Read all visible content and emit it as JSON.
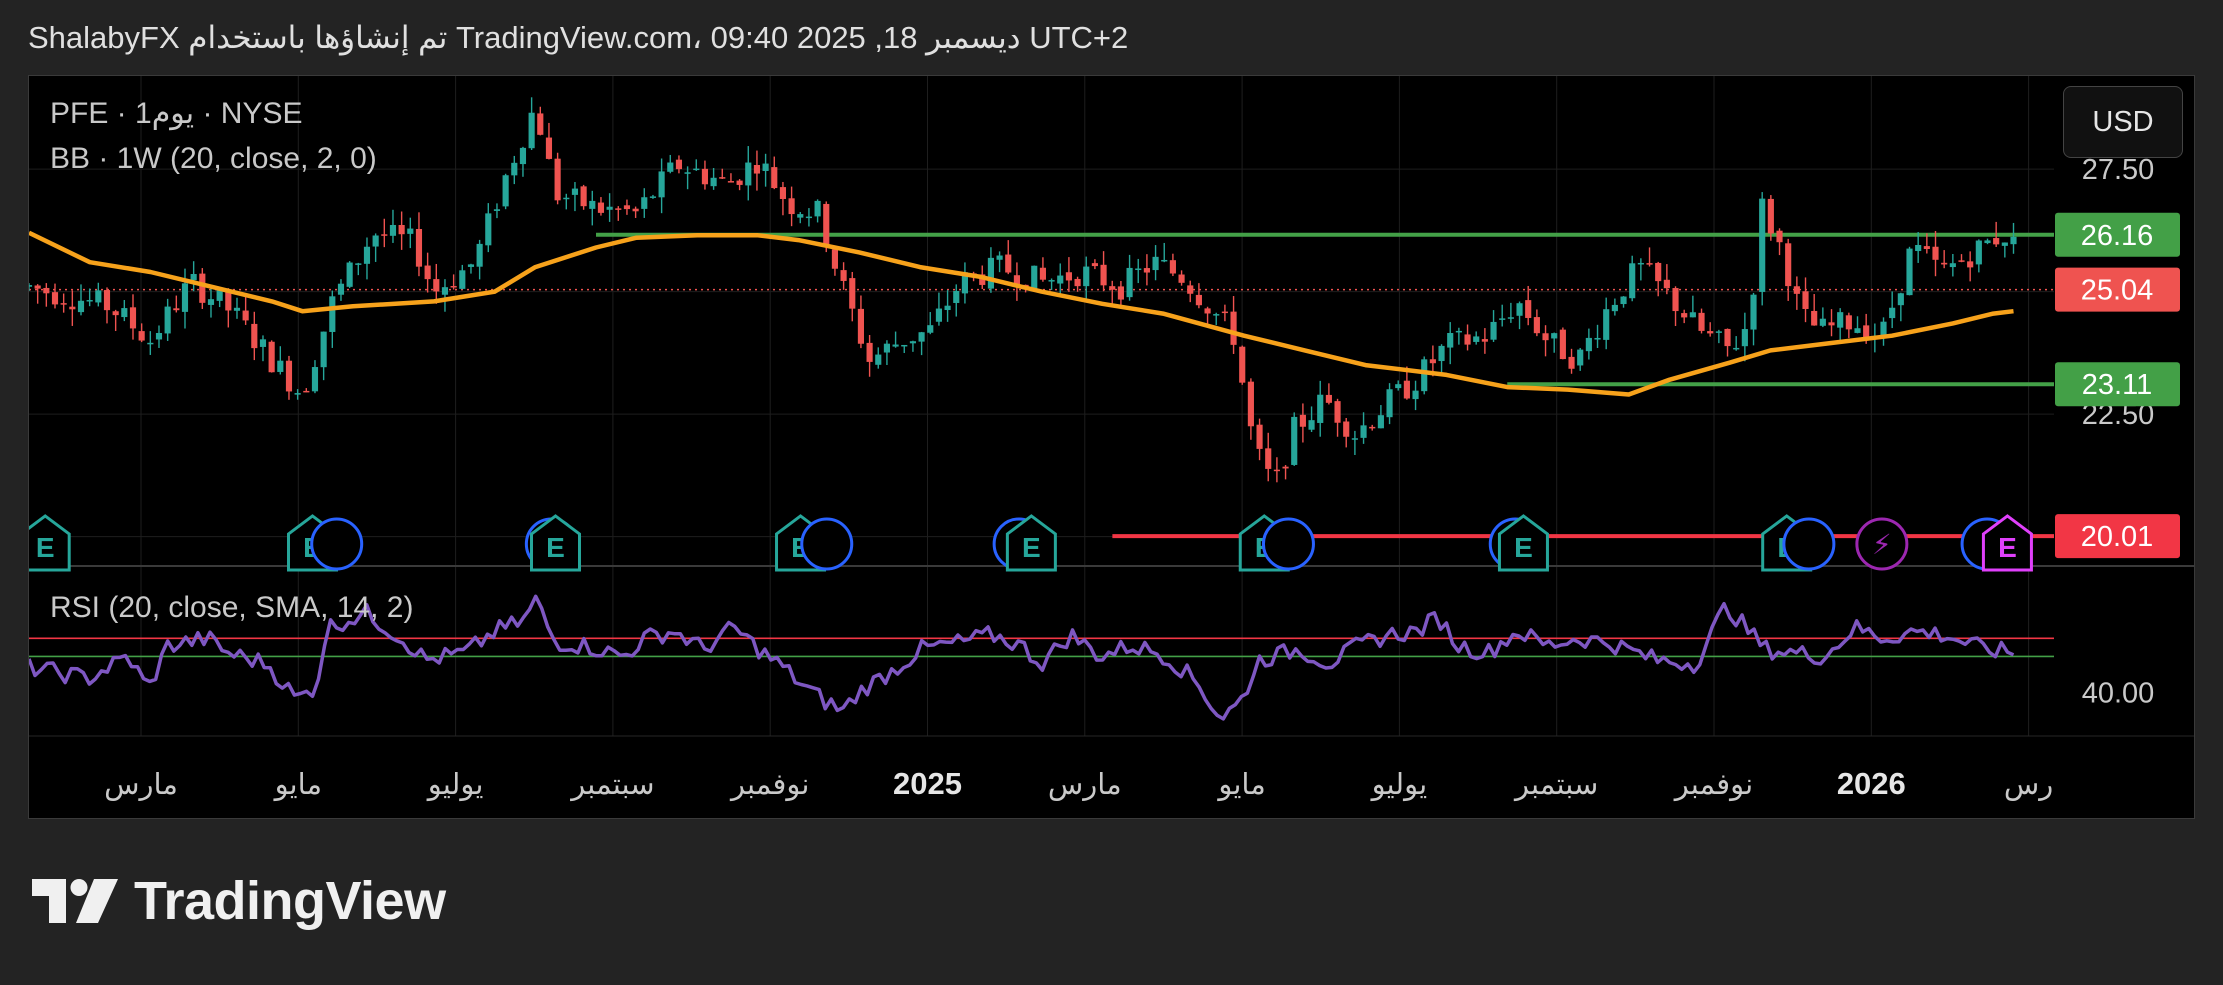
{
  "header": {
    "attribution": "ShalabyFX تم إنشاؤها باستخدام TradingView.com، 09:40 2025 ,18 ديسمبر UTC+2"
  },
  "legend": {
    "symbol_line": "PFE · 1يوم · NYSE",
    "indicator_line": "BB · 1W (20, close, 2, 0)"
  },
  "currency": "USD",
  "rsi_panel": {
    "label": "RSI (20, close, SMA, 14, 2)"
  },
  "footer": {
    "brand": "TradingView"
  },
  "colors": {
    "up": "#26a69a",
    "down": "#ef5350",
    "basis": "#f7a21b",
    "resistance": "#43a047",
    "support": "#f23645",
    "rsi": "#7e57c2",
    "earnings": "#26a69a",
    "dividend": "#2962ff",
    "split": "#9c27b0"
  },
  "chart_data": [
    {
      "type": "candlestick",
      "symbol": "PFE",
      "timeframe": "1D",
      "exchange": "NYSE",
      "currency": "USD",
      "x_ticks": [
        "مارس",
        "مايو",
        "يوليو",
        "سبتمبر",
        "نوفمبر",
        "2025",
        "مارس",
        "مايو",
        "يوليو",
        "سبتمبر",
        "نوفمبر",
        "2026",
        "رس"
      ],
      "y_ticks": [
        "27.50",
        "22.50"
      ],
      "ylim": [
        19.4,
        29.4
      ],
      "price_path": [
        [
          0,
          25.1
        ],
        [
          0.04,
          24.7
        ],
        [
          0.06,
          24.0
        ],
        [
          0.08,
          25.2
        ],
        [
          0.1,
          24.6
        ],
        [
          0.12,
          23.6
        ],
        [
          0.135,
          22.9
        ],
        [
          0.15,
          24.8
        ],
        [
          0.17,
          26.2
        ],
        [
          0.19,
          26.0
        ],
        [
          0.2,
          25.0
        ],
        [
          0.22,
          25.6
        ],
        [
          0.235,
          27.3
        ],
        [
          0.25,
          28.8
        ],
        [
          0.26,
          27.0
        ],
        [
          0.28,
          26.7
        ],
        [
          0.3,
          26.6
        ],
        [
          0.32,
          27.6
        ],
        [
          0.345,
          27.2
        ],
        [
          0.36,
          27.7
        ],
        [
          0.375,
          26.8
        ],
        [
          0.39,
          26.6
        ],
        [
          0.4,
          25.3
        ],
        [
          0.415,
          23.6
        ],
        [
          0.43,
          24.0
        ],
        [
          0.445,
          24.2
        ],
        [
          0.46,
          25.2
        ],
        [
          0.48,
          25.5
        ],
        [
          0.5,
          25.2
        ],
        [
          0.52,
          25.4
        ],
        [
          0.54,
          25.1
        ],
        [
          0.555,
          25.6
        ],
        [
          0.57,
          25.3
        ],
        [
          0.585,
          24.6
        ],
        [
          0.595,
          24.1
        ],
        [
          0.605,
          21.8
        ],
        [
          0.615,
          21.0
        ],
        [
          0.625,
          22.2
        ],
        [
          0.64,
          22.8
        ],
        [
          0.655,
          22.1
        ],
        [
          0.67,
          22.7
        ],
        [
          0.685,
          23.2
        ],
        [
          0.7,
          23.9
        ],
        [
          0.72,
          24.1
        ],
        [
          0.735,
          24.8
        ],
        [
          0.75,
          24.0
        ],
        [
          0.765,
          23.6
        ],
        [
          0.78,
          24.7
        ],
        [
          0.795,
          25.5
        ],
        [
          0.81,
          24.9
        ],
        [
          0.825,
          24.2
        ],
        [
          0.84,
          23.8
        ],
        [
          0.85,
          24.4
        ],
        [
          0.855,
          26.8
        ],
        [
          0.865,
          25.9
        ],
        [
          0.875,
          24.5
        ],
        [
          0.885,
          24.2
        ],
        [
          0.9,
          24.4
        ],
        [
          0.915,
          24.1
        ],
        [
          0.93,
          25.9
        ],
        [
          0.945,
          25.4
        ],
        [
          0.96,
          25.8
        ],
        [
          0.975,
          26.2
        ],
        [
          0.985,
          25.7
        ],
        [
          1.0,
          25.0
        ]
      ],
      "basis_path": [
        [
          0.0,
          26.2
        ],
        [
          0.03,
          25.6
        ],
        [
          0.06,
          25.4
        ],
        [
          0.09,
          25.1
        ],
        [
          0.12,
          24.8
        ],
        [
          0.135,
          24.6
        ],
        [
          0.16,
          24.7
        ],
        [
          0.2,
          24.8
        ],
        [
          0.23,
          25.0
        ],
        [
          0.25,
          25.5
        ],
        [
          0.28,
          25.9
        ],
        [
          0.3,
          26.1
        ],
        [
          0.33,
          26.15
        ],
        [
          0.36,
          26.15
        ],
        [
          0.38,
          26.05
        ],
        [
          0.41,
          25.8
        ],
        [
          0.44,
          25.5
        ],
        [
          0.47,
          25.3
        ],
        [
          0.5,
          25.0
        ],
        [
          0.53,
          24.75
        ],
        [
          0.56,
          24.55
        ],
        [
          0.6,
          24.1
        ],
        [
          0.63,
          23.8
        ],
        [
          0.66,
          23.5
        ],
        [
          0.7,
          23.3
        ],
        [
          0.73,
          23.05
        ],
        [
          0.76,
          23.0
        ],
        [
          0.79,
          22.9
        ],
        [
          0.81,
          23.2
        ],
        [
          0.84,
          23.55
        ],
        [
          0.86,
          23.8
        ],
        [
          0.89,
          23.95
        ],
        [
          0.92,
          24.1
        ],
        [
          0.95,
          24.35
        ],
        [
          0.97,
          24.55
        ],
        [
          0.98,
          24.6
        ]
      ],
      "horizontal_levels": [
        {
          "price": 26.16,
          "label": "26.16",
          "color": "#43a047"
        },
        {
          "price": 23.11,
          "label": "23.11",
          "color": "#43a047"
        },
        {
          "price": 20.01,
          "label": "20.01",
          "color": "#f23645"
        }
      ],
      "last_price": {
        "price": 25.04,
        "label": "25.04"
      },
      "events": [
        {
          "x": 0.008,
          "type": "earnings",
          "label": "E"
        },
        {
          "x": 0.14,
          "type": "earnings",
          "label": "E"
        },
        {
          "x": 0.148,
          "type": "dividend",
          "label": ""
        },
        {
          "x": 0.254,
          "type": "dividend",
          "label": ""
        },
        {
          "x": 0.26,
          "type": "earnings",
          "label": "E"
        },
        {
          "x": 0.381,
          "type": "earnings",
          "label": "E"
        },
        {
          "x": 0.39,
          "type": "dividend",
          "label": ""
        },
        {
          "x": 0.485,
          "type": "dividend",
          "label": "D"
        },
        {
          "x": 0.495,
          "type": "earnings",
          "label": "E"
        },
        {
          "x": 0.61,
          "type": "earnings",
          "label": "E"
        },
        {
          "x": 0.618,
          "type": "dividend",
          "label": ""
        },
        {
          "x": 0.73,
          "type": "dividend",
          "label": "D"
        },
        {
          "x": 0.738,
          "type": "earnings",
          "label": "E"
        },
        {
          "x": 0.868,
          "type": "earnings",
          "label": "E"
        },
        {
          "x": 0.875,
          "type": "dividend",
          "label": ""
        },
        {
          "x": 0.915,
          "type": "split",
          "label": "⚡"
        },
        {
          "x": 0.963,
          "type": "dividend",
          "label": ""
        },
        {
          "x": 0.977,
          "type": "earnings-future",
          "label": "E"
        }
      ]
    },
    {
      "type": "line",
      "name": "RSI (20, close, SMA, 14, 2)",
      "y_ticks": [
        "40.00"
      ],
      "ylim": [
        28,
        75
      ],
      "levels": [
        55,
        50
      ],
      "path": [
        [
          0,
          47
        ],
        [
          0.03,
          44
        ],
        [
          0.05,
          50
        ],
        [
          0.06,
          41
        ],
        [
          0.07,
          53
        ],
        [
          0.09,
          55
        ],
        [
          0.1,
          51
        ],
        [
          0.12,
          48
        ],
        [
          0.135,
          38
        ],
        [
          0.145,
          42
        ],
        [
          0.15,
          58
        ],
        [
          0.17,
          62
        ],
        [
          0.19,
          54
        ],
        [
          0.2,
          49
        ],
        [
          0.22,
          51
        ],
        [
          0.235,
          57
        ],
        [
          0.25,
          60
        ],
        [
          0.255,
          66
        ],
        [
          0.265,
          54
        ],
        [
          0.28,
          53
        ],
        [
          0.3,
          50
        ],
        [
          0.31,
          55
        ],
        [
          0.325,
          57
        ],
        [
          0.34,
          52
        ],
        [
          0.355,
          58
        ],
        [
          0.37,
          51
        ],
        [
          0.38,
          47
        ],
        [
          0.39,
          42
        ],
        [
          0.4,
          38
        ],
        [
          0.41,
          35
        ],
        [
          0.42,
          41
        ],
        [
          0.435,
          46
        ],
        [
          0.45,
          52
        ],
        [
          0.47,
          54
        ],
        [
          0.485,
          56
        ],
        [
          0.5,
          53
        ],
        [
          0.51,
          48
        ],
        [
          0.525,
          56
        ],
        [
          0.54,
          50
        ],
        [
          0.555,
          53
        ],
        [
          0.57,
          51
        ],
        [
          0.58,
          47
        ],
        [
          0.59,
          42
        ],
        [
          0.6,
          33
        ],
        [
          0.61,
          37
        ],
        [
          0.62,
          49
        ],
        [
          0.64,
          52
        ],
        [
          0.655,
          48
        ],
        [
          0.67,
          53
        ],
        [
          0.685,
          56
        ],
        [
          0.7,
          57
        ],
        [
          0.71,
          61
        ],
        [
          0.72,
          53
        ],
        [
          0.735,
          51
        ],
        [
          0.75,
          57
        ],
        [
          0.765,
          53
        ],
        [
          0.78,
          55
        ],
        [
          0.795,
          54
        ],
        [
          0.81,
          51
        ],
        [
          0.82,
          49
        ],
        [
          0.84,
          48
        ],
        [
          0.855,
          64
        ],
        [
          0.865,
          58
        ],
        [
          0.875,
          52
        ],
        [
          0.89,
          51
        ],
        [
          0.905,
          50
        ],
        [
          0.92,
          58
        ],
        [
          0.935,
          55
        ],
        [
          0.95,
          57
        ],
        [
          0.965,
          56
        ],
        [
          0.975,
          54
        ],
        [
          0.985,
          52
        ],
        [
          1.0,
          51
        ]
      ]
    }
  ]
}
